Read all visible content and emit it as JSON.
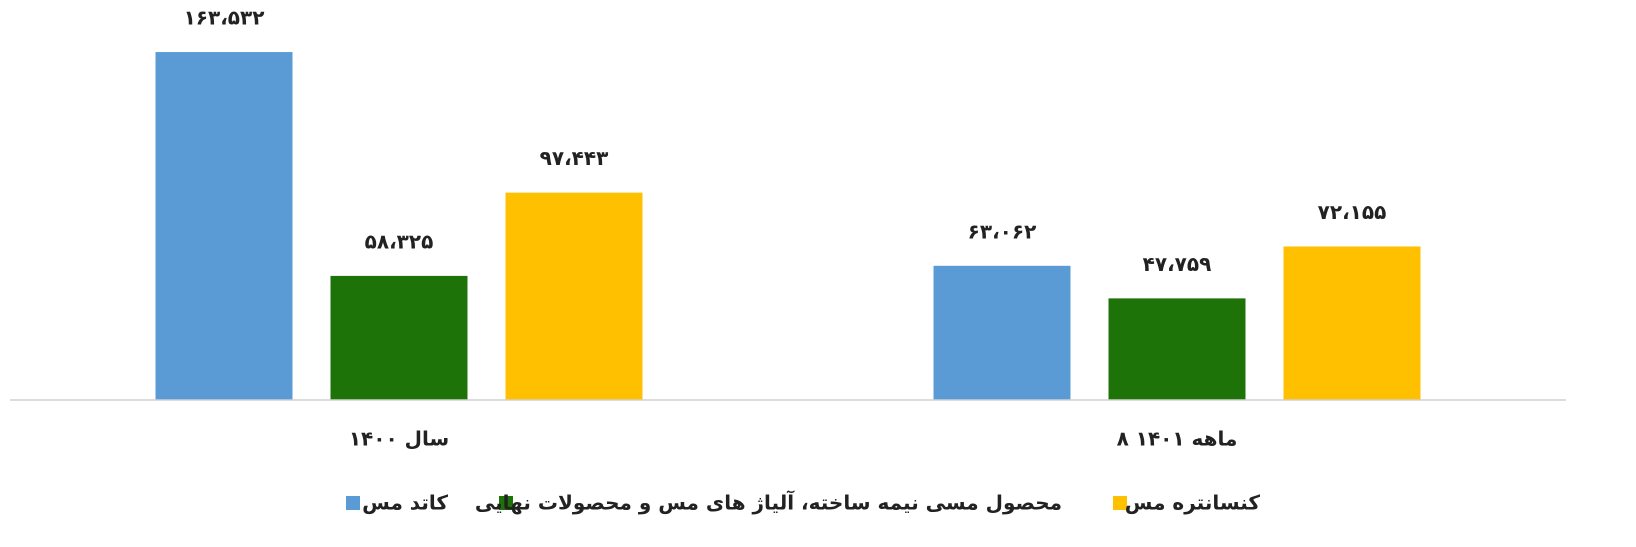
{
  "chart_data": {
    "type": "bar",
    "categories": [
      "سال ۱۴۰۰",
      "۸ ماهه ۱۴۰۱"
    ],
    "series": [
      {
        "name": "کاتد مس",
        "color": "#5b9bd5",
        "values": [
          163532,
          63062
        ],
        "value_labels": [
          "۱۶۳،۵۳۲",
          "۶۳،۰۶۲"
        ]
      },
      {
        "name": "محصول مسی نیمه ساخته، آلیاژ های مس و محصولات نهایی",
        "color": "#1e7308",
        "values": [
          58325,
          47759
        ],
        "value_labels": [
          "۵۸،۳۲۵",
          "۴۷،۷۵۹"
        ]
      },
      {
        "name": "کنسانتره مس",
        "color": "#ffc000",
        "values": [
          97443,
          72155
        ],
        "value_labels": [
          "۹۷،۴۴۳",
          "۷۲،۱۵۵"
        ]
      }
    ],
    "ylim": [
      0,
      180000
    ]
  }
}
